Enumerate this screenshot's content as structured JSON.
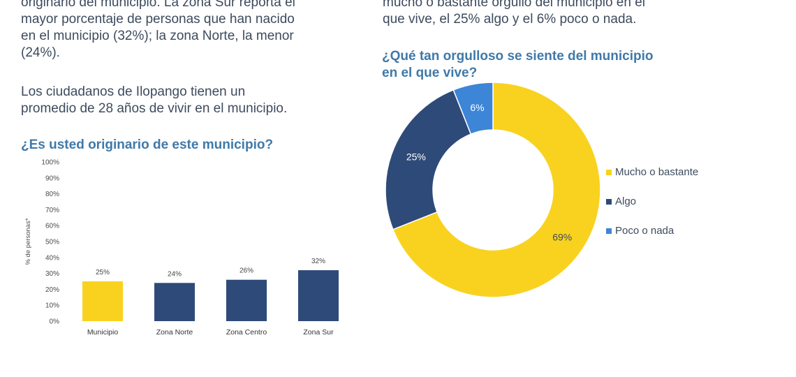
{
  "text": {
    "left_paragraph_1": [
      "originario del municipio. La zona Sur reporta el",
      "mayor porcentaje de personas que han nacido",
      "en el municipio (32%); la zona Norte, la menor",
      "(24%)."
    ],
    "left_paragraph_2": [
      "Los ciudadanos de Ilopango tienen un",
      "promedio de 28 años de vivir en el municipio."
    ],
    "right_paragraph": [
      "mucho o bastante orgullo del municipio en el",
      "que vive, el 25% algo y el 6% poco o nada."
    ]
  },
  "colors": {
    "title": "#3f79a9",
    "yellow": "#f8d21f",
    "navy": "#2e4a78",
    "light_blue": "#3d85d6"
  },
  "chart_data": [
    {
      "type": "bar",
      "title": "¿Es usted originario de este municipio?",
      "ylabel": "% de personas*",
      "categories": [
        "Municipio",
        "Zona Norte",
        "Zona Centro",
        "Zona Sur"
      ],
      "values": [
        25,
        24,
        26,
        32
      ],
      "data_labels": [
        "25%",
        "24%",
        "26%",
        "32%"
      ],
      "bar_colors": [
        "#f8d21f",
        "#2e4a78",
        "#2e4a78",
        "#2e4a78"
      ],
      "ylim": [
        0,
        100
      ],
      "yticks": [
        0,
        10,
        20,
        30,
        40,
        50,
        60,
        70,
        80,
        90,
        100
      ],
      "ytick_labels": [
        "0%",
        "10%",
        "20%",
        "30%",
        "40%",
        "50%",
        "60%",
        "70%",
        "80%",
        "90%",
        "100%"
      ],
      "grid": false
    },
    {
      "type": "pie",
      "subtype": "donut",
      "title_lines": [
        "¿Qué tan orgulloso se siente del municipio",
        "en el que vive?"
      ],
      "categories": [
        "Mucho o bastante",
        "Algo",
        "Poco o nada"
      ],
      "values": [
        69,
        25,
        6
      ],
      "data_labels": [
        "69%",
        "25%",
        "6%"
      ],
      "colors": [
        "#f8d21f",
        "#2e4a78",
        "#3d85d6"
      ],
      "label_colors": [
        "#3d4b5e",
        "#ffffff",
        "#ffffff"
      ],
      "legend": [
        "Mucho o bastante",
        "Algo",
        "Poco o nada"
      ],
      "legend_position": "right"
    }
  ]
}
